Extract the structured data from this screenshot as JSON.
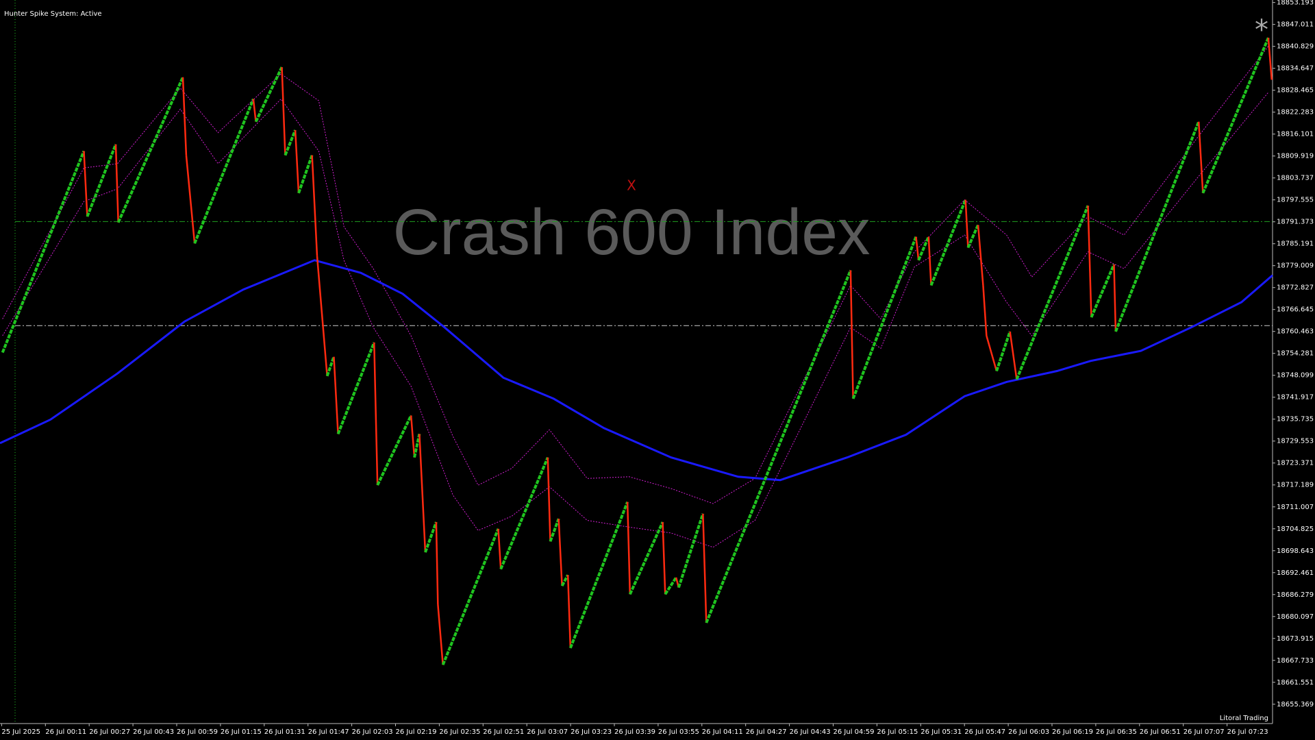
{
  "header": {
    "status": "Hunter Spike System: Active",
    "watermark": "Crash 600 Index",
    "signal": "X",
    "star": "*"
  },
  "footer": {
    "brand": "Litoral Trading"
  },
  "chart_data": {
    "type": "renko",
    "categories": [
      "25 Jul 2025",
      "26 Jul 00:11",
      "26 Jul 00:27",
      "26 Jul 00:43",
      "26 Jul 00:59",
      "26 Jul 01:15",
      "26 Jul 01:31",
      "26 Jul 01:47",
      "26 Jul 02:03",
      "26 Jul 02:19",
      "26 Jul 02:35",
      "26 Jul 02:51",
      "26 Jul 03:07",
      "26 Jul 03:23",
      "26 Jul 03:39",
      "26 Jul 03:55",
      "26 Jul 04:11",
      "26 Jul 04:27",
      "26 Jul 04:43",
      "26 Jul 04:59",
      "26 Jul 05:15",
      "26 Jul 05:31",
      "26 Jul 05:47",
      "26 Jul 06:03",
      "26 Jul 06:19",
      "26 Jul 06:35",
      "26 Jul 06:51",
      "26 Jul 07:07",
      "26 Jul 07:23"
    ],
    "xlim": [
      0,
      1517
    ],
    "ylim": [
      18649.92,
      18853.9
    ],
    "yticks": [
      18853.193,
      18847.011,
      18840.829,
      18834.647,
      18828.465,
      18822.283,
      18816.101,
      18809.919,
      18803.737,
      18797.555,
      18791.373,
      18785.191,
      18779.009,
      18772.827,
      18766.645,
      18760.463,
      18754.281,
      18748.099,
      18741.917,
      18735.735,
      18729.553,
      18723.371,
      18717.189,
      18711.007,
      18704.825,
      18698.643,
      18692.461,
      18686.279,
      18680.097,
      18673.915,
      18667.733,
      18661.551,
      18655.369
    ],
    "price": {
      "up_color": "#1fc41f",
      "down_color": "#ff2a10",
      "x": [
        3,
        100,
        104,
        138,
        141,
        218,
        222,
        232,
        302,
        305,
        336,
        340,
        352,
        356,
        372,
        378,
        390,
        398,
        403,
        446,
        450,
        490,
        494,
        500,
        507,
        520,
        522,
        528,
        594,
        597,
        653,
        656,
        666,
        670,
        677,
        680,
        748,
        751,
        790,
        793,
        806,
        809,
        838,
        842,
        1014,
        1017,
        1092,
        1095,
        1107,
        1110,
        1151,
        1154,
        1166,
        1172,
        1176,
        1188,
        1204,
        1212,
        1297,
        1301,
        1328,
        1330,
        1429,
        1434,
        1512,
        1516
      ],
      "values": [
        18754.51,
        18811.31,
        18792.85,
        18813.2,
        18791.19,
        18832.13,
        18810.13,
        18785.28,
        18825.98,
        18819.59,
        18834.97,
        18810.13,
        18817.22,
        18799.47,
        18810.13,
        18781.73,
        18747.89,
        18753.33,
        18731.56,
        18757.35,
        18717.13,
        18736.77,
        18724.94,
        18731.56,
        18698.19,
        18706.72,
        18683.53,
        18666.49,
        18704.82,
        18693.46,
        18724.94,
        18701.27,
        18707.66,
        18688.73,
        18691.81,
        18671.22,
        18712.39,
        18686.37,
        18706.72,
        18686.37,
        18691.1,
        18688.26,
        18709.08,
        18678.32,
        18777.7,
        18741.5,
        18787.17,
        18780.54,
        18787.17,
        18773.45,
        18797.58,
        18784.09,
        18790.48,
        18773.45,
        18759.25,
        18749.31,
        18760.43,
        18746.94,
        18795.93,
        18764.45,
        18779.36,
        18760.43,
        18819.59,
        18799.47,
        18843.25,
        18831.42
      ]
    },
    "moving_average": {
      "color": "#1a1aff",
      "x": [
        0,
        60,
        140,
        220,
        290,
        375,
        430,
        480,
        530,
        600,
        660,
        720,
        800,
        880,
        930,
        1010,
        1080,
        1150,
        1200,
        1260,
        1300,
        1360,
        1420,
        1480,
        1517
      ],
      "values": [
        18728.96,
        18735.59,
        18748.6,
        18763.27,
        18772.26,
        18780.54,
        18776.99,
        18771.08,
        18761.61,
        18747.42,
        18741.5,
        18733.22,
        18724.94,
        18719.49,
        18718.55,
        18724.94,
        18731.33,
        18742.21,
        18746.23,
        18749.31,
        18752.15,
        18754.99,
        18761.61,
        18768.71,
        18776.29
      ]
    },
    "bands": {
      "color": "#d21fd2",
      "x": [
        3,
        100,
        140,
        215,
        260,
        335,
        380,
        410,
        445,
        490,
        540,
        570,
        610,
        655,
        700,
        750,
        800,
        850,
        900,
        1014,
        1050,
        1090,
        1150,
        1200,
        1230,
        1297,
        1340,
        1429,
        1512
      ],
      "upper": [
        18763.98,
        18806.57,
        18807.76,
        18829.05,
        18816.51,
        18833.08,
        18825.5,
        18790.01,
        18778.18,
        18759.25,
        18730.85,
        18717.13,
        18721.86,
        18732.75,
        18719.02,
        18719.49,
        18716.18,
        18711.92,
        18719.02,
        18773.45,
        18763.98,
        18782.91,
        18797.58,
        18787.64,
        18775.81,
        18792.85,
        18787.64,
        18815.57,
        18840.89
      ],
      "lower": [
        18759.25,
        18797.11,
        18800.66,
        18823.14,
        18807.76,
        18825.98,
        18811.31,
        18780.54,
        18761.61,
        18745.05,
        18714.29,
        18704.35,
        18708.37,
        18716.65,
        18707.19,
        18705.3,
        18703.64,
        18699.62,
        18707.19,
        18761.61,
        18755.7,
        18778.65,
        18787.64,
        18768.71,
        18759.25,
        18782.91,
        18778.18,
        18804.21,
        18827.87
      ]
    },
    "levels": [
      {
        "value": 18791.43,
        "color": "#1fa01f"
      },
      {
        "value": 18762.09,
        "color": "#cccccc"
      }
    ]
  }
}
